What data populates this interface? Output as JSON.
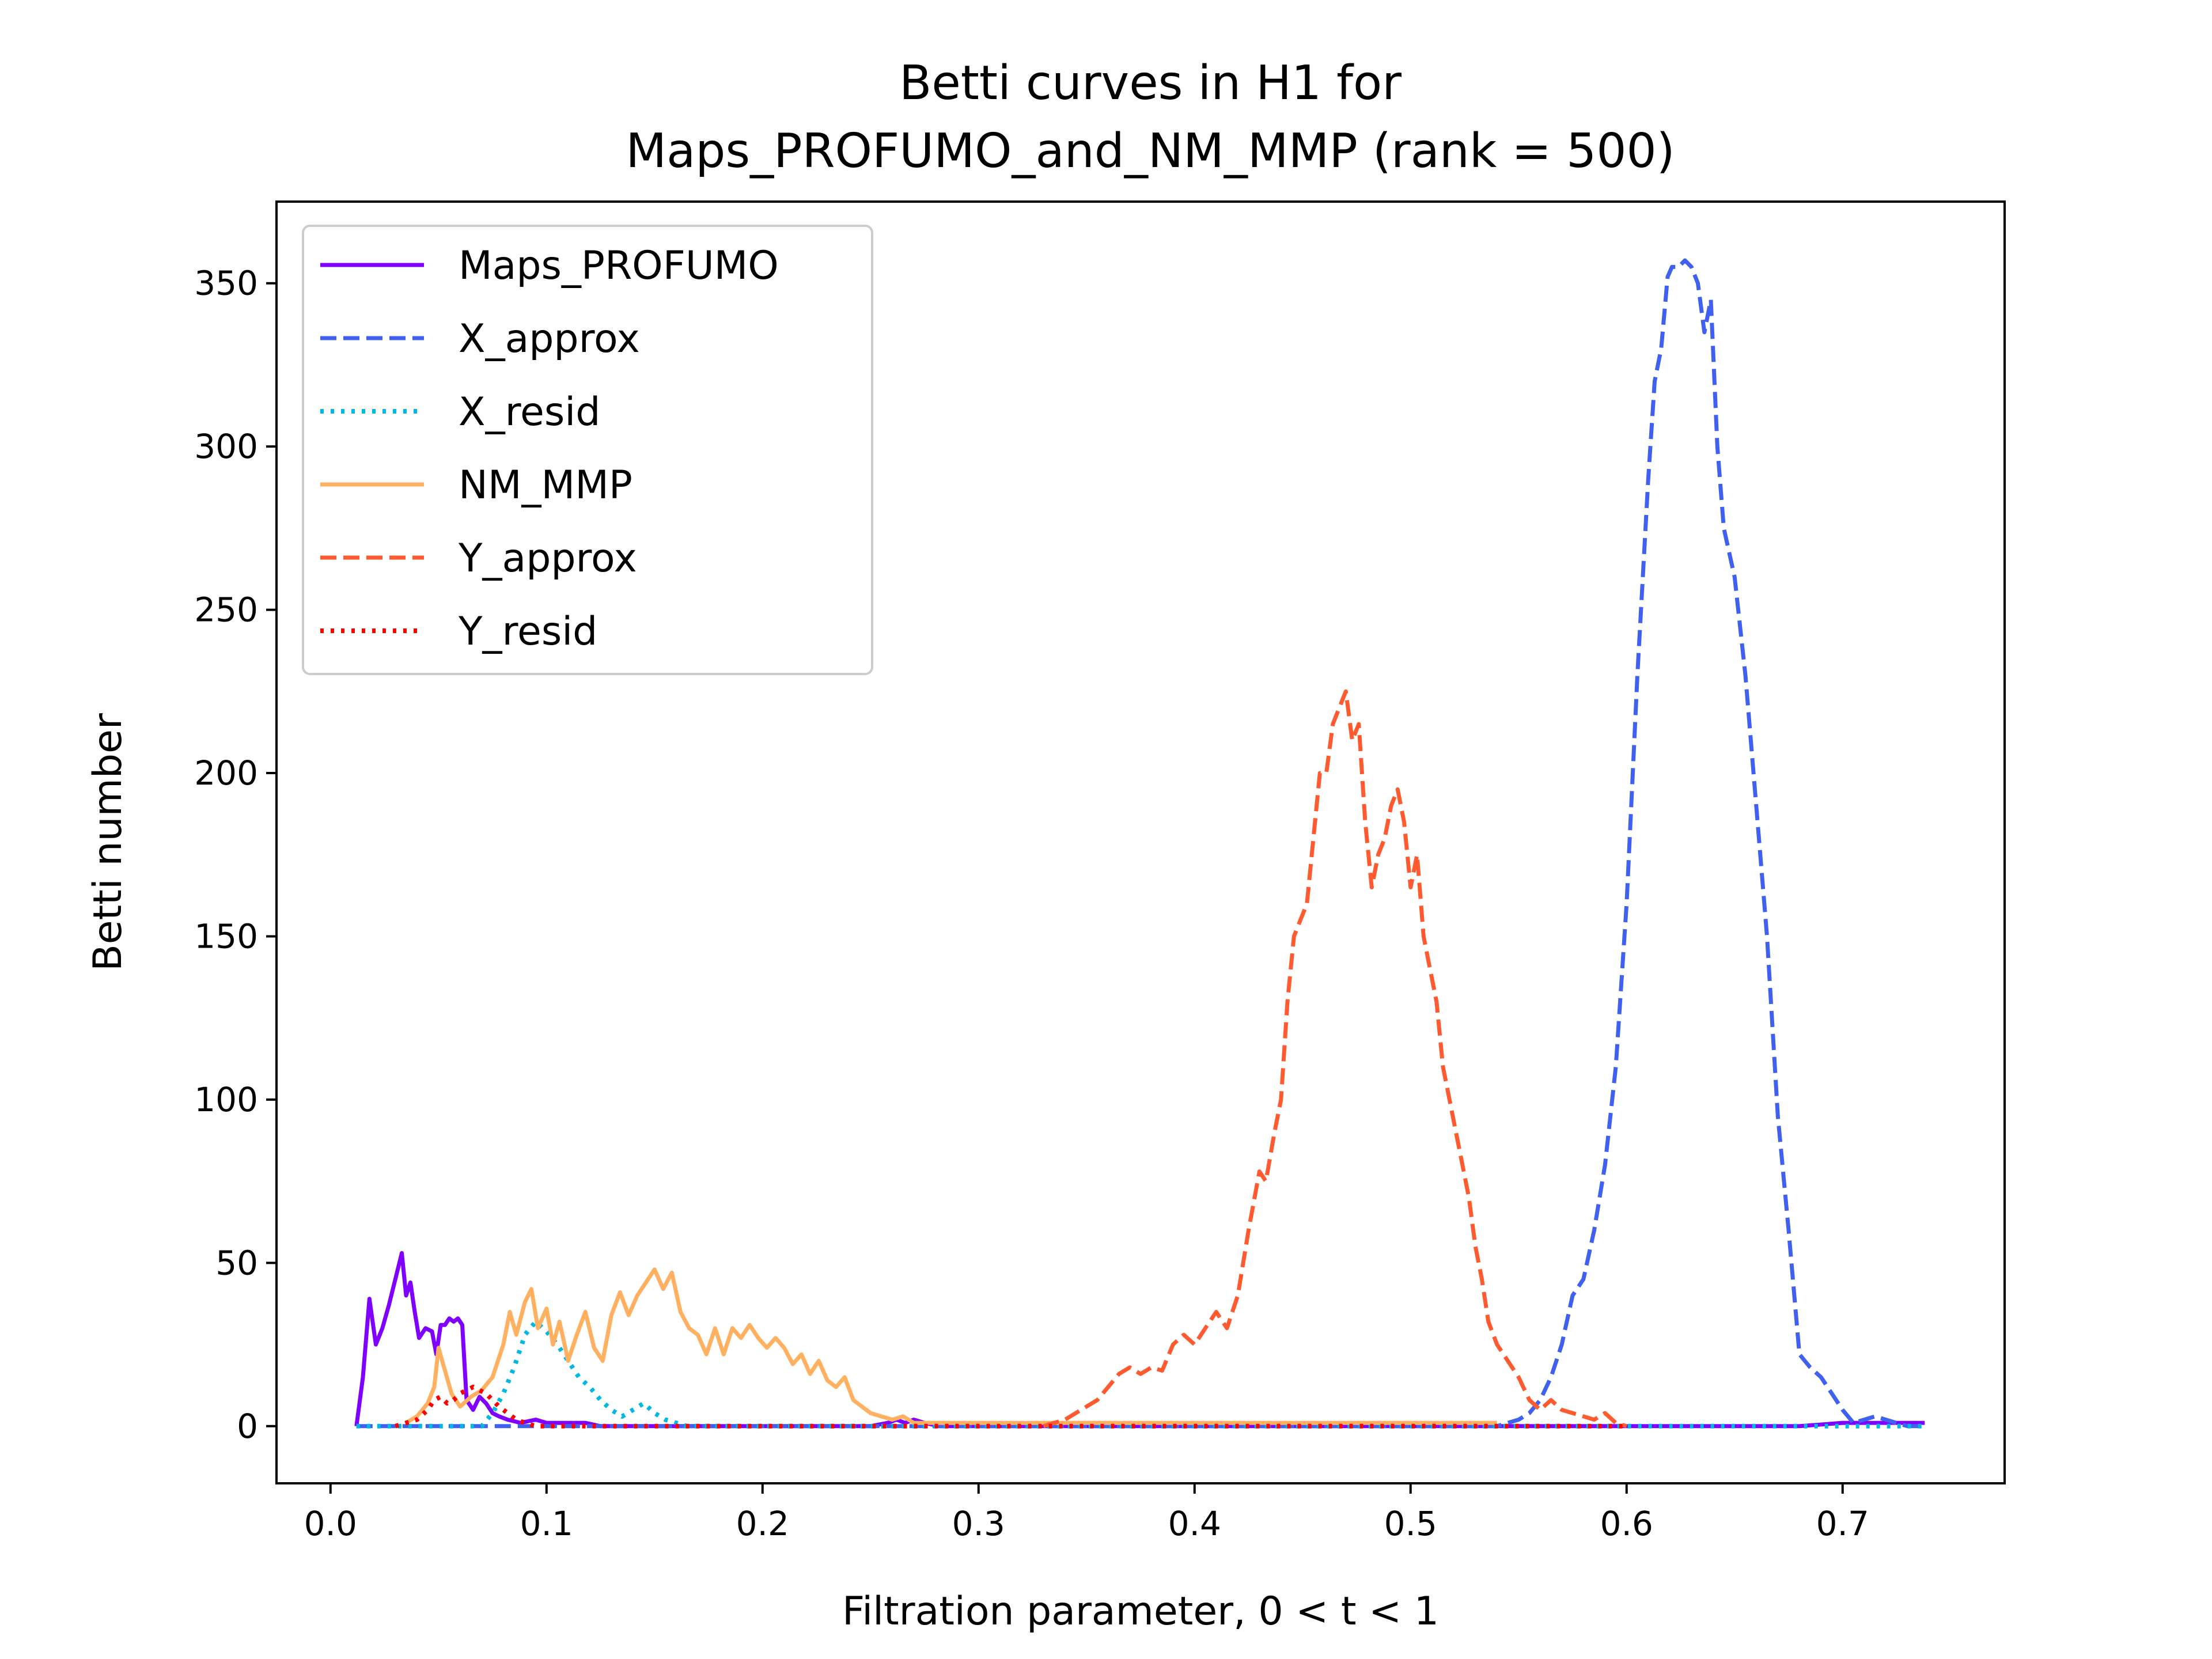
{
  "chart_data": {
    "type": "line",
    "title_line1": "Betti curves in H1 for",
    "title_line2": "Maps_PROFUMO_and_NM_MMP (rank = 500)",
    "xlabel": "Filtration parameter, 0 < t < 1",
    "ylabel": "Betti number",
    "xlim": [
      -0.025,
      0.775
    ],
    "ylim": [
      -17.5,
      375
    ],
    "xticks": [
      0.0,
      0.1,
      0.2,
      0.3,
      0.4,
      0.5,
      0.6,
      0.7
    ],
    "xtick_labels": [
      "0.0",
      "0.1",
      "0.2",
      "0.3",
      "0.4",
      "0.5",
      "0.6",
      "0.7"
    ],
    "yticks": [
      0,
      50,
      100,
      150,
      200,
      250,
      300,
      350
    ],
    "ytick_labels": [
      "0",
      "50",
      "100",
      "150",
      "200",
      "250",
      "300",
      "350"
    ],
    "grid": false,
    "legend_position": "top-left",
    "series": [
      {
        "name": "Maps_PROFUMO",
        "color": "#7f00ff",
        "style": "solid",
        "points": [
          [
            0.012,
            0
          ],
          [
            0.015,
            15
          ],
          [
            0.018,
            39
          ],
          [
            0.021,
            25
          ],
          [
            0.024,
            30
          ],
          [
            0.027,
            37
          ],
          [
            0.03,
            45
          ],
          [
            0.033,
            53
          ],
          [
            0.035,
            40
          ],
          [
            0.037,
            44
          ],
          [
            0.039,
            35
          ],
          [
            0.041,
            27
          ],
          [
            0.044,
            30
          ],
          [
            0.047,
            29
          ],
          [
            0.049,
            22
          ],
          [
            0.051,
            31
          ],
          [
            0.053,
            31
          ],
          [
            0.055,
            33
          ],
          [
            0.057,
            32
          ],
          [
            0.059,
            33
          ],
          [
            0.061,
            31
          ],
          [
            0.063,
            8
          ],
          [
            0.066,
            5
          ],
          [
            0.069,
            9
          ],
          [
            0.072,
            7
          ],
          [
            0.075,
            4
          ],
          [
            0.078,
            3
          ],
          [
            0.082,
            2
          ],
          [
            0.088,
            1
          ],
          [
            0.095,
            2
          ],
          [
            0.1,
            1
          ],
          [
            0.106,
            1
          ],
          [
            0.112,
            1
          ],
          [
            0.118,
            1
          ],
          [
            0.125,
            0
          ],
          [
            0.15,
            0
          ],
          [
            0.2,
            0
          ],
          [
            0.25,
            0
          ],
          [
            0.258,
            1
          ],
          [
            0.262,
            2
          ],
          [
            0.266,
            1
          ],
          [
            0.27,
            2
          ],
          [
            0.275,
            1
          ],
          [
            0.282,
            0
          ],
          [
            0.3,
            0
          ],
          [
            0.4,
            0
          ],
          [
            0.5,
            0
          ],
          [
            0.6,
            0
          ],
          [
            0.68,
            0
          ],
          [
            0.7,
            1
          ],
          [
            0.72,
            1
          ],
          [
            0.738,
            1
          ]
        ]
      },
      {
        "name": "X_approx",
        "color": "#4060f0",
        "style": "dashed",
        "points": [
          [
            0.012,
            0
          ],
          [
            0.1,
            0
          ],
          [
            0.2,
            0
          ],
          [
            0.3,
            0
          ],
          [
            0.4,
            0
          ],
          [
            0.5,
            0
          ],
          [
            0.54,
            0
          ],
          [
            0.545,
            1
          ],
          [
            0.55,
            2
          ],
          [
            0.555,
            4
          ],
          [
            0.56,
            8
          ],
          [
            0.565,
            15
          ],
          [
            0.57,
            25
          ],
          [
            0.575,
            40
          ],
          [
            0.58,
            45
          ],
          [
            0.585,
            60
          ],
          [
            0.59,
            80
          ],
          [
            0.595,
            110
          ],
          [
            0.6,
            160
          ],
          [
            0.605,
            230
          ],
          [
            0.61,
            290
          ],
          [
            0.613,
            320
          ],
          [
            0.616,
            330
          ],
          [
            0.619,
            352
          ],
          [
            0.621,
            355
          ],
          [
            0.624,
            355
          ],
          [
            0.627,
            357
          ],
          [
            0.63,
            355
          ],
          [
            0.633,
            350
          ],
          [
            0.636,
            335
          ],
          [
            0.639,
            345
          ],
          [
            0.642,
            300
          ],
          [
            0.645,
            275
          ],
          [
            0.65,
            260
          ],
          [
            0.655,
            230
          ],
          [
            0.66,
            190
          ],
          [
            0.665,
            150
          ],
          [
            0.67,
            95
          ],
          [
            0.675,
            60
          ],
          [
            0.68,
            22
          ],
          [
            0.685,
            18
          ],
          [
            0.69,
            15
          ],
          [
            0.695,
            10
          ],
          [
            0.7,
            5
          ],
          [
            0.705,
            1
          ],
          [
            0.71,
            2
          ],
          [
            0.715,
            3
          ],
          [
            0.72,
            2
          ],
          [
            0.725,
            1
          ],
          [
            0.73,
            0
          ],
          [
            0.738,
            0
          ]
        ]
      },
      {
        "name": "X_resid",
        "color": "#00b8e0",
        "style": "dotted",
        "points": [
          [
            0.012,
            0
          ],
          [
            0.06,
            0
          ],
          [
            0.07,
            0
          ],
          [
            0.075,
            4
          ],
          [
            0.08,
            10
          ],
          [
            0.085,
            18
          ],
          [
            0.09,
            28
          ],
          [
            0.095,
            32
          ],
          [
            0.1,
            29
          ],
          [
            0.105,
            25
          ],
          [
            0.11,
            20
          ],
          [
            0.115,
            15
          ],
          [
            0.12,
            12
          ],
          [
            0.125,
            8
          ],
          [
            0.13,
            5
          ],
          [
            0.135,
            3
          ],
          [
            0.14,
            5
          ],
          [
            0.145,
            7
          ],
          [
            0.15,
            4
          ],
          [
            0.155,
            2
          ],
          [
            0.16,
            1
          ],
          [
            0.165,
            0
          ],
          [
            0.2,
            0
          ],
          [
            0.3,
            0
          ],
          [
            0.4,
            0
          ],
          [
            0.5,
            0
          ],
          [
            0.6,
            0
          ],
          [
            0.7,
            0
          ],
          [
            0.738,
            0
          ]
        ]
      },
      {
        "name": "NM_MMP",
        "color": "#ffb060",
        "style": "solid",
        "points": [
          [
            0.035,
            1
          ],
          [
            0.04,
            3
          ],
          [
            0.045,
            7
          ],
          [
            0.048,
            12
          ],
          [
            0.05,
            24
          ],
          [
            0.053,
            17
          ],
          [
            0.056,
            10
          ],
          [
            0.06,
            6
          ],
          [
            0.065,
            9
          ],
          [
            0.07,
            11
          ],
          [
            0.075,
            15
          ],
          [
            0.08,
            25
          ],
          [
            0.083,
            35
          ],
          [
            0.086,
            28
          ],
          [
            0.09,
            38
          ],
          [
            0.093,
            42
          ],
          [
            0.096,
            30
          ],
          [
            0.1,
            36
          ],
          [
            0.103,
            25
          ],
          [
            0.106,
            32
          ],
          [
            0.11,
            20
          ],
          [
            0.114,
            28
          ],
          [
            0.118,
            35
          ],
          [
            0.122,
            24
          ],
          [
            0.126,
            20
          ],
          [
            0.13,
            34
          ],
          [
            0.134,
            41
          ],
          [
            0.138,
            34
          ],
          [
            0.142,
            40
          ],
          [
            0.146,
            44
          ],
          [
            0.15,
            48
          ],
          [
            0.154,
            42
          ],
          [
            0.158,
            47
          ],
          [
            0.162,
            35
          ],
          [
            0.166,
            30
          ],
          [
            0.17,
            28
          ],
          [
            0.174,
            22
          ],
          [
            0.178,
            30
          ],
          [
            0.182,
            22
          ],
          [
            0.186,
            30
          ],
          [
            0.19,
            27
          ],
          [
            0.194,
            31
          ],
          [
            0.198,
            27
          ],
          [
            0.202,
            24
          ],
          [
            0.206,
            27
          ],
          [
            0.21,
            24
          ],
          [
            0.214,
            19
          ],
          [
            0.218,
            22
          ],
          [
            0.222,
            16
          ],
          [
            0.226,
            20
          ],
          [
            0.23,
            14
          ],
          [
            0.234,
            12
          ],
          [
            0.238,
            15
          ],
          [
            0.242,
            8
          ],
          [
            0.246,
            6
          ],
          [
            0.25,
            4
          ],
          [
            0.255,
            3
          ],
          [
            0.26,
            2
          ],
          [
            0.265,
            3
          ],
          [
            0.27,
            1
          ],
          [
            0.28,
            1
          ],
          [
            0.3,
            1
          ],
          [
            0.4,
            1
          ],
          [
            0.5,
            1
          ],
          [
            0.54,
            1
          ]
        ]
      },
      {
        "name": "Y_approx",
        "color": "#ff5a30",
        "style": "dashed",
        "points": [
          [
            0.33,
            0
          ],
          [
            0.335,
            1
          ],
          [
            0.34,
            2
          ],
          [
            0.345,
            4
          ],
          [
            0.35,
            6
          ],
          [
            0.355,
            8
          ],
          [
            0.36,
            12
          ],
          [
            0.365,
            16
          ],
          [
            0.37,
            18
          ],
          [
            0.375,
            16
          ],
          [
            0.38,
            18
          ],
          [
            0.385,
            17
          ],
          [
            0.39,
            25
          ],
          [
            0.395,
            28
          ],
          [
            0.4,
            25
          ],
          [
            0.405,
            30
          ],
          [
            0.41,
            35
          ],
          [
            0.415,
            30
          ],
          [
            0.42,
            40
          ],
          [
            0.425,
            60
          ],
          [
            0.43,
            78
          ],
          [
            0.433,
            75
          ],
          [
            0.437,
            90
          ],
          [
            0.44,
            100
          ],
          [
            0.443,
            130
          ],
          [
            0.446,
            150
          ],
          [
            0.449,
            155
          ],
          [
            0.452,
            160
          ],
          [
            0.455,
            180
          ],
          [
            0.458,
            200
          ],
          [
            0.461,
            200
          ],
          [
            0.464,
            215
          ],
          [
            0.467,
            220
          ],
          [
            0.47,
            225
          ],
          [
            0.473,
            210
          ],
          [
            0.476,
            215
          ],
          [
            0.479,
            185
          ],
          [
            0.482,
            165
          ],
          [
            0.485,
            175
          ],
          [
            0.488,
            180
          ],
          [
            0.491,
            190
          ],
          [
            0.494,
            195
          ],
          [
            0.497,
            185
          ],
          [
            0.5,
            165
          ],
          [
            0.503,
            175
          ],
          [
            0.506,
            150
          ],
          [
            0.509,
            140
          ],
          [
            0.512,
            130
          ],
          [
            0.515,
            110
          ],
          [
            0.518,
            100
          ],
          [
            0.521,
            90
          ],
          [
            0.524,
            80
          ],
          [
            0.527,
            70
          ],
          [
            0.53,
            55
          ],
          [
            0.533,
            45
          ],
          [
            0.536,
            32
          ],
          [
            0.54,
            25
          ],
          [
            0.545,
            20
          ],
          [
            0.55,
            15
          ],
          [
            0.555,
            8
          ],
          [
            0.56,
            5
          ],
          [
            0.565,
            8
          ],
          [
            0.57,
            5
          ],
          [
            0.575,
            4
          ],
          [
            0.58,
            3
          ],
          [
            0.585,
            2
          ],
          [
            0.59,
            4
          ],
          [
            0.595,
            1
          ],
          [
            0.6,
            0
          ]
        ]
      },
      {
        "name": "Y_resid",
        "color": "#ff0000",
        "style": "dotted",
        "points": [
          [
            0.03,
            0
          ],
          [
            0.04,
            2
          ],
          [
            0.045,
            5
          ],
          [
            0.048,
            8
          ],
          [
            0.051,
            9
          ],
          [
            0.054,
            7
          ],
          [
            0.057,
            8
          ],
          [
            0.06,
            10
          ],
          [
            0.063,
            11
          ],
          [
            0.066,
            12
          ],
          [
            0.069,
            11
          ],
          [
            0.072,
            10
          ],
          [
            0.075,
            8
          ],
          [
            0.078,
            6
          ],
          [
            0.082,
            4
          ],
          [
            0.086,
            2
          ],
          [
            0.09,
            1
          ],
          [
            0.095,
            0
          ],
          [
            0.1,
            0
          ],
          [
            0.2,
            0
          ],
          [
            0.3,
            0
          ],
          [
            0.4,
            0
          ],
          [
            0.5,
            0
          ],
          [
            0.6,
            0
          ]
        ]
      }
    ]
  }
}
